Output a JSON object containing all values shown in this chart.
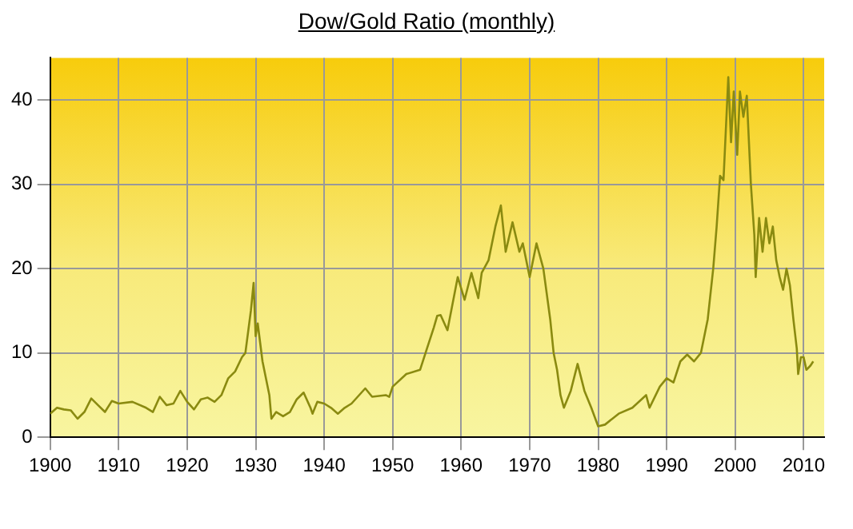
{
  "chart_data": {
    "type": "line",
    "title": "Dow/Gold Ratio (monthly)",
    "x": [
      1900,
      1901,
      1902,
      1903,
      1904,
      1905,
      1906,
      1907,
      1908,
      1909,
      1910,
      1912,
      1914,
      1915,
      1916,
      1917,
      1918,
      1919,
      1920,
      1921,
      1922,
      1923,
      1924,
      1925,
      1926,
      1927,
      1928,
      1928.5,
      1929.3,
      1929.7,
      1930,
      1930.3,
      1931,
      1932,
      1932.3,
      1933,
      1934,
      1935,
      1936,
      1937,
      1938,
      1938.3,
      1939,
      1940,
      1941,
      1942,
      1943,
      1944,
      1946,
      1947,
      1949,
      1949.5,
      1950,
      1952,
      1954,
      1955,
      1956,
      1956.5,
      1957,
      1958,
      1959.5,
      1960.5,
      1961.5,
      1962.5,
      1963,
      1964,
      1965,
      1965.8,
      1966.5,
      1967.5,
      1968.5,
      1969,
      1970,
      1971,
      1972,
      1973,
      1973.5,
      1974,
      1974.5,
      1975,
      1976,
      1977,
      1978,
      1979,
      1980,
      1981,
      1983,
      1985,
      1987,
      1987.5,
      1989,
      1990,
      1991,
      1992,
      1993,
      1994,
      1995,
      1996,
      1996.8,
      1997.3,
      1997.8,
      1998.3,
      1999,
      1999.4,
      1999.8,
      2000.3,
      2000.7,
      2001.2,
      2001.7,
      2002.3,
      2002.8,
      2003,
      2003.5,
      2004,
      2004.5,
      2005,
      2005.5,
      2006,
      2006.5,
      2007,
      2007.5,
      2008,
      2008.5,
      2009,
      2009.2,
      2009.6,
      2010,
      2010.4,
      2011,
      2011.4
    ],
    "series": [
      {
        "color": "#8a8a10",
        "values": [
          2.8,
          3.5,
          3.3,
          3.2,
          2.2,
          3.0,
          4.6,
          3.8,
          3.0,
          4.3,
          4.0,
          4.2,
          3.5,
          3.0,
          4.8,
          3.8,
          4.0,
          5.5,
          4.2,
          3.3,
          4.5,
          4.7,
          4.2,
          5.0,
          7.0,
          7.8,
          9.5,
          10,
          15,
          18.3,
          12,
          13.5,
          9,
          5,
          2.2,
          3,
          2.5,
          3,
          4.5,
          5.3,
          3.5,
          2.8,
          4.2,
          4.0,
          3.5,
          2.8,
          3.5,
          4,
          5.8,
          4.8,
          5,
          4.8,
          6,
          7.5,
          8,
          10.5,
          13,
          14.4,
          14.5,
          12.7,
          19,
          16.3,
          19.5,
          16.5,
          19.5,
          21,
          25,
          27.5,
          22,
          25.5,
          22,
          23,
          19,
          23,
          20,
          14,
          10,
          8,
          5,
          3.5,
          5.5,
          8.7,
          5.5,
          3.5,
          1.3,
          1.5,
          2.8,
          3.5,
          5,
          3.5,
          6,
          7,
          6.5,
          9,
          9.8,
          9,
          10,
          14,
          20,
          25,
          31,
          30.5,
          42.7,
          35,
          41,
          33.5,
          41,
          38,
          40.5,
          30,
          24,
          19,
          26,
          22,
          26,
          23,
          25,
          21,
          19,
          17.5,
          20,
          18,
          14,
          10.5,
          7.5,
          9.5,
          9.5,
          8,
          8.5,
          9
        ]
      }
    ],
    "xlim": [
      1900,
      2013
    ],
    "xticks": [
      1900,
      1910,
      1920,
      1930,
      1940,
      1950,
      1960,
      1970,
      1980,
      1990,
      2000,
      2010
    ],
    "ylim": [
      0,
      45
    ],
    "yticks": [
      0,
      10,
      20,
      30,
      40
    ],
    "grid": true,
    "legend": false
  }
}
